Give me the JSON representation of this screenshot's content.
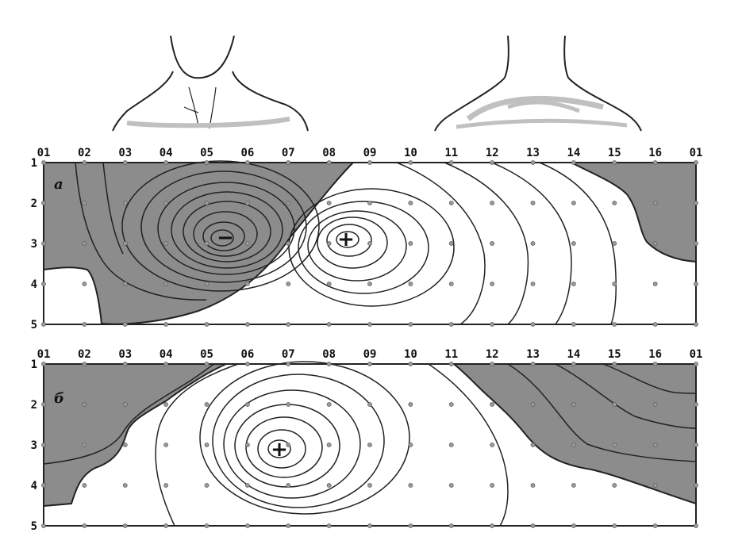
{
  "figure": {
    "column_labels": [
      "01",
      "02",
      "03",
      "04",
      "05",
      "06",
      "07",
      "08",
      "09",
      "10",
      "11",
      "12",
      "13",
      "14",
      "15",
      "16",
      "01"
    ],
    "row_labels": [
      "1",
      "2",
      "3",
      "4",
      "5"
    ],
    "panels": [
      {
        "letter": "а",
        "positive_marker": "+",
        "negative_marker": "−"
      },
      {
        "letter": "б",
        "positive_marker": "+"
      }
    ]
  },
  "colors": {
    "negative_region": "#8c8c8c",
    "positive_region": "#ffffff",
    "contour_line": "#222222",
    "body_outline": "#222222",
    "body_shading": "#c0c0c0"
  },
  "illustrations": [
    "torso-front-view",
    "torso-back-view"
  ]
}
